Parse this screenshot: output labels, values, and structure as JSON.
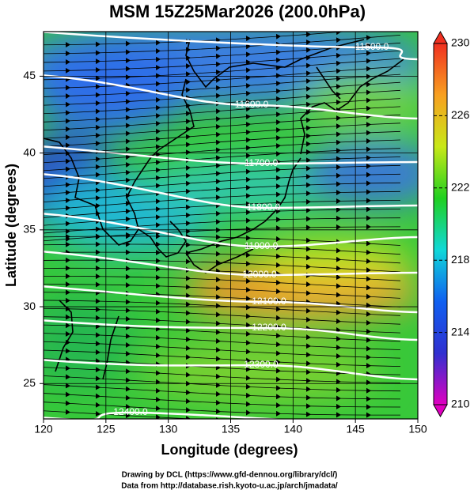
{
  "title": "MSM 15Z25Mar2026 (200.0hPa)",
  "x_axis": {
    "label": "Longitude (degrees)",
    "lim": [
      120,
      150
    ],
    "ticks": [
      120,
      125,
      130,
      135,
      140,
      145,
      150
    ]
  },
  "y_axis": {
    "label": "Latitude  (degrees)",
    "lim": [
      22.7,
      47.9
    ],
    "ticks": [
      25,
      30,
      35,
      40,
      45
    ]
  },
  "colorbar": {
    "lim": [
      210,
      230
    ],
    "ticks": [
      210,
      214,
      218,
      222,
      226,
      230
    ],
    "colors": [
      "#e000c0",
      "#3030d0",
      "#1060f0",
      "#10d8d8",
      "#20d020",
      "#c8e818",
      "#f8a020",
      "#f03020"
    ]
  },
  "contours": [
    "11500.0",
    "11600.0",
    "11700.0",
    "11800.0",
    "11900.0",
    "12000.0",
    "12100.0",
    "12200.0",
    "12300.0",
    "12400.0"
  ],
  "footer": [
    "Drawing by DCL (https://www.gfd-dennou.org/library/dcl/)",
    "Data from http://database.rish.kyoto-u.ac.jp/arch/jmadata/"
  ]
}
